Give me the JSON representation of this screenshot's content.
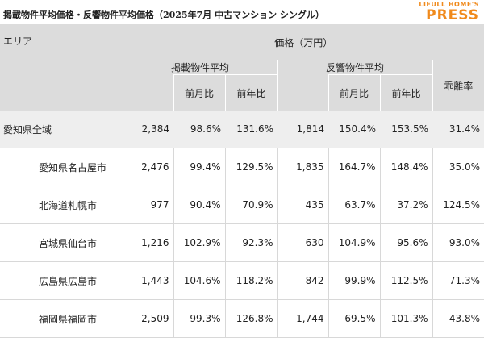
{
  "title": "掲載物件平均価格・反響物件平均価格（2025年7月 中古マンション シングル）",
  "logo": {
    "top": "LIFULL HOME'S",
    "main": "PRESS",
    "color": "#f08a1c"
  },
  "table": {
    "area_header": "エリア",
    "price_header": "価格（万円）",
    "listing_group": "掲載物件平均",
    "response_group": "反響物件平均",
    "ratio_header": "乖離率",
    "mom_label": "前月比",
    "yoy_label": "前年比",
    "rows": [
      {
        "area": "愛知県全域",
        "listing": "2,384",
        "listing_mom": "98.6%",
        "listing_yoy": "131.6%",
        "response": "1,814",
        "response_mom": "150.4%",
        "response_yoy": "153.5%",
        "ratio": "31.4%"
      },
      {
        "area": "愛知県名古屋市",
        "listing": "2,476",
        "listing_mom": "99.4%",
        "listing_yoy": "129.5%",
        "response": "1,835",
        "response_mom": "164.7%",
        "response_yoy": "148.4%",
        "ratio": "35.0%"
      },
      {
        "area": "北海道札幌市",
        "listing": "977",
        "listing_mom": "90.4%",
        "listing_yoy": "70.9%",
        "response": "435",
        "response_mom": "63.7%",
        "response_yoy": "37.2%",
        "ratio": "124.5%"
      },
      {
        "area": "宮城県仙台市",
        "listing": "1,216",
        "listing_mom": "102.9%",
        "listing_yoy": "92.3%",
        "response": "630",
        "response_mom": "104.9%",
        "response_yoy": "95.6%",
        "ratio": "93.0%"
      },
      {
        "area": "広島県広島市",
        "listing": "1,443",
        "listing_mom": "104.6%",
        "listing_yoy": "118.2%",
        "response": "842",
        "response_mom": "99.9%",
        "response_yoy": "112.5%",
        "ratio": "71.3%"
      },
      {
        "area": "福岡県福岡市",
        "listing": "2,509",
        "listing_mom": "99.3%",
        "listing_yoy": "126.8%",
        "response": "1,744",
        "response_mom": "69.5%",
        "response_yoy": "101.3%",
        "ratio": "43.8%"
      }
    ]
  }
}
